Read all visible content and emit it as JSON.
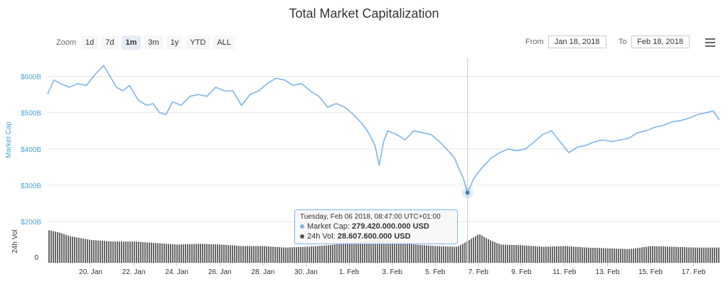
{
  "title": "Total Market Capitalization",
  "zoom": {
    "label": "Zoom",
    "buttons": [
      "1d",
      "7d",
      "1m",
      "3m",
      "1y",
      "YTD",
      "ALL"
    ],
    "active": "1m"
  },
  "range": {
    "from_label": "From",
    "from_value": "Jan 18, 2018",
    "to_label": "To",
    "to_value": "Feb 18, 2018"
  },
  "tooltip": {
    "header": "Tuesday, Feb 06 2018, 08:47:00 UTC+01:00",
    "market_cap_label": "Market Cap:",
    "market_cap_value": "279.420.000.000 USD",
    "vol_label": "24h Vol:",
    "vol_value": "28.607.600.000 USD"
  },
  "colors": {
    "line": "#7cb5ec",
    "volume": "#666666",
    "axis_title": "#4aa3df"
  },
  "chart_data": {
    "type": "line",
    "x_ticks": [
      "20. Jan",
      "22. Jan",
      "24. Jan",
      "26. Jan",
      "28. Jan",
      "30. Jan",
      "1. Feb",
      "3. Feb",
      "5. Feb",
      "7. Feb",
      "9. Feb",
      "11. Feb",
      "13. Feb",
      "15. Feb",
      "17. Feb"
    ],
    "market_cap": {
      "name": "Market Cap",
      "ylabel": "Market Cap",
      "y_ticks": [
        "$200B",
        "$300B",
        "$400B",
        "$500B",
        "$600B"
      ],
      "ylim": [
        200,
        650
      ],
      "unit": "B USD",
      "x": [
        18.0,
        18.3,
        18.6,
        19.0,
        19.4,
        19.8,
        20.2,
        20.6,
        20.9,
        21.2,
        21.5,
        21.8,
        22.2,
        22.6,
        22.9,
        23.2,
        23.5,
        23.8,
        24.2,
        24.6,
        25.0,
        25.4,
        25.8,
        26.2,
        26.6,
        27.0,
        27.4,
        27.8,
        28.2,
        28.6,
        29.0,
        29.4,
        29.8,
        30.2,
        30.6,
        31.0,
        31.4,
        31.8,
        32.2,
        32.6,
        32.9,
        33.2,
        33.4,
        33.6,
        33.8,
        34.2,
        34.6,
        35.0,
        35.4,
        35.8,
        36.2,
        36.6,
        36.9,
        37.1,
        37.3,
        37.5,
        37.8,
        38.2,
        38.6,
        39.0,
        39.4,
        39.8,
        40.2,
        40.6,
        41.0,
        41.4,
        41.8,
        42.2,
        42.6,
        43.0,
        43.4,
        43.8,
        44.2,
        44.6,
        45.0,
        45.4,
        45.8,
        46.2,
        46.6,
        47.0,
        47.4,
        47.8,
        48.2,
        48.6,
        48.9,
        49.2
      ],
      "y": [
        552,
        590,
        580,
        570,
        580,
        575,
        605,
        630,
        600,
        570,
        560,
        575,
        535,
        520,
        525,
        500,
        495,
        530,
        520,
        545,
        550,
        545,
        570,
        560,
        560,
        520,
        550,
        560,
        580,
        595,
        590,
        575,
        580,
        560,
        545,
        515,
        525,
        515,
        495,
        470,
        445,
        410,
        355,
        420,
        450,
        440,
        425,
        450,
        445,
        440,
        420,
        395,
        375,
        345,
        320,
        279,
        320,
        350,
        375,
        390,
        400,
        395,
        400,
        420,
        440,
        450,
        420,
        390,
        405,
        410,
        420,
        425,
        420,
        425,
        430,
        445,
        450,
        460,
        465,
        475,
        478,
        485,
        495,
        500,
        505,
        480
      ]
    },
    "volume": {
      "name": "24h Vol",
      "ylabel": "24h Vol",
      "y_ticks": [
        "0"
      ],
      "unit": "B USD",
      "x": [
        18.0,
        18.5,
        19.0,
        20.0,
        21.0,
        22.0,
        23.0,
        24.0,
        25.0,
        26.0,
        27.0,
        28.0,
        29.0,
        30.0,
        31.0,
        32.0,
        33.0,
        33.5,
        34.0,
        35.0,
        36.0,
        37.0,
        37.5,
        38.0,
        38.5,
        39.0,
        40.0,
        41.0,
        42.0,
        43.0,
        44.0,
        45.0,
        46.0,
        47.0,
        48.0,
        49.2
      ],
      "y": [
        43,
        40,
        35,
        30,
        28,
        28,
        26,
        24,
        25,
        24,
        22,
        22,
        20,
        21,
        23,
        26,
        30,
        32,
        28,
        24,
        22,
        21,
        29,
        38,
        30,
        24,
        23,
        21,
        22,
        20,
        19,
        18,
        22,
        21,
        20,
        20
      ]
    },
    "highlight": {
      "x": 37.5,
      "y": 279.42,
      "volume": 28.6076
    }
  }
}
